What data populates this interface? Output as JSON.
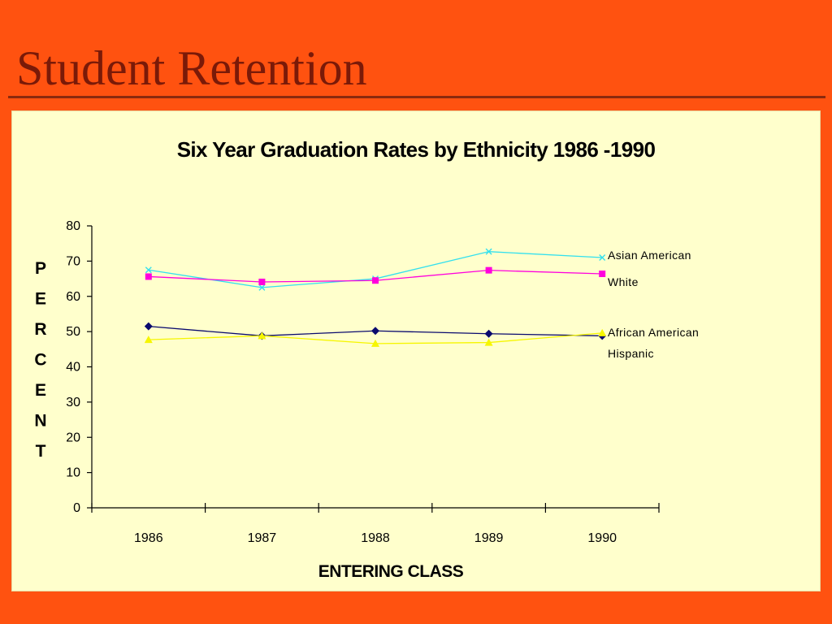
{
  "slide": {
    "title": "Student Retention"
  },
  "colors": {
    "background": "#ff5210",
    "panel": "#ffffcc",
    "title_text": "#7a1a08"
  },
  "chart_data": {
    "type": "line",
    "title": "Six Year Graduation Rates by Ethnicity 1986 -1990",
    "xlabel": "ENTERING CLASS",
    "ylabel": "PERCENT",
    "ylabel_letters": [
      "P",
      "E",
      "R",
      "C",
      "E",
      "N",
      "T"
    ],
    "categories": [
      "1986",
      "1987",
      "1988",
      "1989",
      "1990"
    ],
    "ylim": [
      0,
      80
    ],
    "yticks": [
      0,
      10,
      20,
      30,
      40,
      50,
      60,
      70,
      80
    ],
    "grid": false,
    "legend": "series labels at right end of lines",
    "series": [
      {
        "name": "Asian American",
        "color": "#33e0ee",
        "marker": "x",
        "values": [
          67.5,
          62.5,
          65.0,
          72.7,
          71.0
        ]
      },
      {
        "name": "White",
        "color": "#ff00dd",
        "marker": "square",
        "values": [
          65.6,
          64.1,
          64.5,
          67.4,
          66.4
        ]
      },
      {
        "name": "African American",
        "color": "#0a0a6e",
        "marker": "diamond",
        "values": [
          51.5,
          48.8,
          50.2,
          49.4,
          48.8
        ]
      },
      {
        "name": "Hispanic",
        "color": "#f6f600",
        "marker": "triangle",
        "values": [
          47.7,
          48.8,
          46.6,
          46.9,
          49.6
        ]
      }
    ]
  }
}
